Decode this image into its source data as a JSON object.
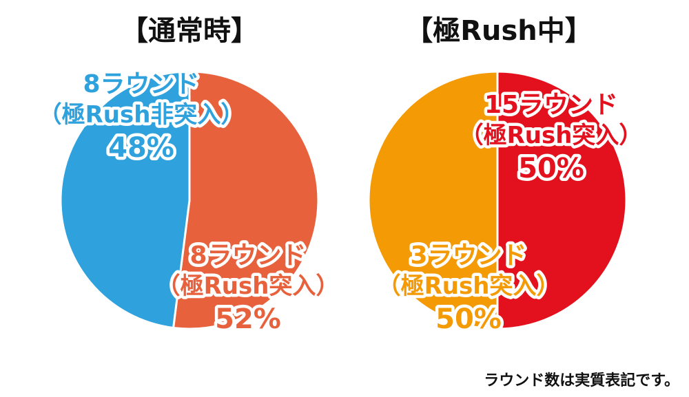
{
  "footnote": "ラウンド数は実質表記です。",
  "chart_data": [
    {
      "type": "pie",
      "title": "【通常時】",
      "slices": [
        {
          "lines": [
            "8ラウンド",
            "（極Rush突入）",
            "52%"
          ],
          "value": 52,
          "color": "#e8613d"
        },
        {
          "lines": [
            "8ラウンド",
            "（極Rush非突入）",
            "48%"
          ],
          "value": 48,
          "color": "#2fa2de"
        }
      ]
    },
    {
      "type": "pie",
      "title": "【極Rush中】",
      "slices": [
        {
          "lines": [
            "15ラウンド",
            "（極Rush突入）",
            "50%"
          ],
          "value": 50,
          "color": "#e3101d"
        },
        {
          "lines": [
            "3ラウンド",
            "（極Rush突入）",
            "50%"
          ],
          "value": 50,
          "color": "#f39a05"
        }
      ]
    }
  ]
}
